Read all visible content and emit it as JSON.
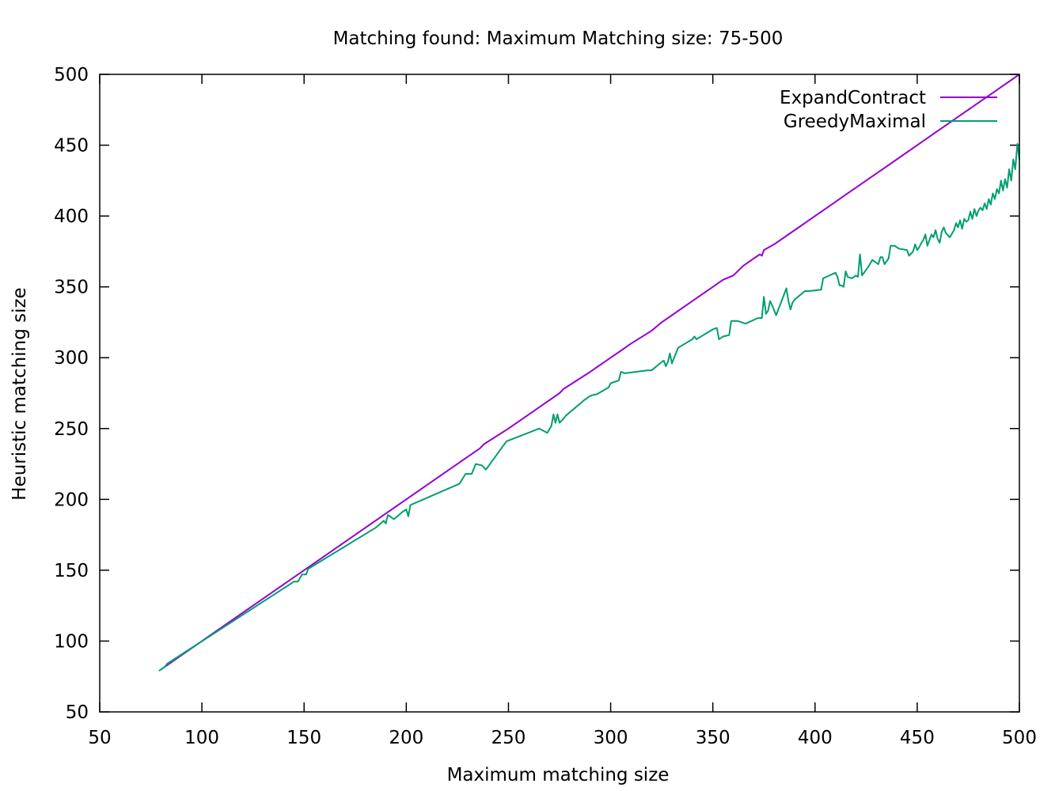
{
  "chart_data": {
    "type": "line",
    "title": "Matching found: Maximum Matching size: 75-500",
    "xlabel": "Maximum matching size",
    "ylabel": "Heuristic matching size",
    "xlim": [
      50,
      500
    ],
    "ylim": [
      50,
      500
    ],
    "xticks": [
      50,
      100,
      150,
      200,
      250,
      300,
      350,
      400,
      450,
      500
    ],
    "yticks": [
      50,
      100,
      150,
      200,
      250,
      300,
      350,
      400,
      450,
      500
    ],
    "grid": false,
    "legend_position": "top-right",
    "series": [
      {
        "name": "ExpandContract",
        "color": "#9400d3",
        "points": [
          [
            80,
            80
          ],
          [
            120,
            120
          ],
          [
            150,
            150
          ],
          [
            200,
            200
          ],
          [
            230,
            230
          ],
          [
            236,
            236
          ],
          [
            238,
            239
          ],
          [
            250,
            250
          ],
          [
            270,
            270
          ],
          [
            275,
            275
          ],
          [
            277,
            278
          ],
          [
            290,
            290
          ],
          [
            300,
            300
          ],
          [
            305,
            305
          ],
          [
            310,
            310
          ],
          [
            320,
            319
          ],
          [
            325,
            325
          ],
          [
            330,
            330
          ],
          [
            340,
            340
          ],
          [
            345,
            345
          ],
          [
            350,
            350
          ],
          [
            355,
            355
          ],
          [
            360,
            358
          ],
          [
            365,
            365
          ],
          [
            370,
            370
          ],
          [
            373,
            373
          ],
          [
            374,
            372
          ],
          [
            375,
            376
          ],
          [
            380,
            380
          ],
          [
            385,
            385
          ],
          [
            390,
            390
          ],
          [
            395,
            395
          ],
          [
            400,
            400
          ],
          [
            405,
            405
          ],
          [
            410,
            410
          ],
          [
            415,
            415
          ],
          [
            420,
            420
          ],
          [
            425,
            425
          ],
          [
            430,
            430
          ],
          [
            435,
            435
          ],
          [
            440,
            440
          ],
          [
            445,
            445
          ],
          [
            450,
            450
          ],
          [
            455,
            455
          ],
          [
            460,
            460
          ],
          [
            465,
            465
          ],
          [
            470,
            470
          ],
          [
            475,
            475
          ],
          [
            480,
            480
          ],
          [
            485,
            485
          ],
          [
            490,
            490
          ],
          [
            495,
            495
          ],
          [
            500,
            500
          ]
        ]
      },
      {
        "name": "GreedyMaximal",
        "color": "#009e73",
        "points": [
          [
            79,
            79
          ],
          [
            80,
            80
          ],
          [
            81,
            81
          ],
          [
            82,
            82
          ],
          [
            83,
            84
          ],
          [
            143,
            140
          ],
          [
            145,
            142
          ],
          [
            147,
            142
          ],
          [
            149,
            147
          ],
          [
            150,
            147
          ],
          [
            151,
            147
          ],
          [
            152,
            151
          ],
          [
            185,
            180
          ],
          [
            189,
            185
          ],
          [
            190,
            183
          ],
          [
            191,
            189
          ],
          [
            194,
            186
          ],
          [
            198,
            191
          ],
          [
            200,
            193
          ],
          [
            201,
            188
          ],
          [
            202,
            196
          ],
          [
            226,
            211
          ],
          [
            229,
            218
          ],
          [
            232,
            218
          ],
          [
            234,
            225
          ],
          [
            237,
            224
          ],
          [
            239,
            221
          ],
          [
            249,
            241
          ],
          [
            265,
            250
          ],
          [
            269,
            247
          ],
          [
            271,
            252
          ],
          [
            272,
            260
          ],
          [
            273,
            254
          ],
          [
            274,
            260
          ],
          [
            275,
            254
          ],
          [
            277,
            257
          ],
          [
            278,
            259
          ],
          [
            287,
            270
          ],
          [
            290,
            273
          ],
          [
            292,
            274
          ],
          [
            293,
            274
          ],
          [
            299,
            279
          ],
          [
            300,
            282
          ],
          [
            304,
            284
          ],
          [
            305,
            290
          ],
          [
            307,
            289
          ],
          [
            318,
            291
          ],
          [
            320,
            291
          ],
          [
            325,
            297
          ],
          [
            326,
            298
          ],
          [
            327,
            294
          ],
          [
            328,
            297
          ],
          [
            329,
            303
          ],
          [
            330,
            296
          ],
          [
            333,
            307
          ],
          [
            340,
            313
          ],
          [
            341,
            315
          ],
          [
            342,
            313
          ],
          [
            350,
            320
          ],
          [
            352,
            321
          ],
          [
            353,
            313
          ],
          [
            355,
            315
          ],
          [
            358,
            316
          ],
          [
            359,
            326
          ],
          [
            362,
            326
          ],
          [
            366,
            324
          ],
          [
            372,
            328
          ],
          [
            373,
            328
          ],
          [
            374,
            328
          ],
          [
            375,
            343
          ],
          [
            376,
            331
          ],
          [
            377,
            333
          ],
          [
            378,
            340
          ],
          [
            379,
            337
          ],
          [
            381,
            330
          ],
          [
            386,
            349
          ],
          [
            387,
            340
          ],
          [
            388,
            334
          ],
          [
            389,
            339
          ],
          [
            390,
            341
          ],
          [
            395,
            347
          ],
          [
            397,
            347
          ],
          [
            403,
            348
          ],
          [
            404,
            356
          ],
          [
            410,
            360
          ],
          [
            411,
            357
          ],
          [
            412,
            351
          ],
          [
            413,
            351
          ],
          [
            414,
            350
          ],
          [
            415,
            361
          ],
          [
            416,
            357
          ],
          [
            418,
            356
          ],
          [
            420,
            358
          ],
          [
            421,
            357
          ],
          [
            422,
            373
          ],
          [
            423,
            358
          ],
          [
            426,
            364
          ],
          [
            428,
            369
          ],
          [
            430,
            367
          ],
          [
            431,
            366
          ],
          [
            432,
            371
          ],
          [
            433,
            371
          ],
          [
            434,
            366
          ],
          [
            436,
            370
          ],
          [
            437,
            379
          ],
          [
            439,
            379
          ],
          [
            441,
            377
          ],
          [
            445,
            376
          ],
          [
            446,
            372
          ],
          [
            448,
            375
          ],
          [
            449,
            380
          ],
          [
            450,
            376
          ],
          [
            451,
            378
          ],
          [
            452,
            381
          ],
          [
            453,
            383
          ],
          [
            454,
            387
          ],
          [
            455,
            379
          ],
          [
            457,
            387
          ],
          [
            458,
            385
          ],
          [
            459,
            390
          ],
          [
            460,
            384
          ],
          [
            461,
            381
          ],
          [
            462,
            389
          ],
          [
            463,
            392
          ],
          [
            464,
            388
          ],
          [
            466,
            385
          ],
          [
            468,
            390
          ],
          [
            469,
            395
          ],
          [
            470,
            392
          ],
          [
            471,
            397
          ],
          [
            472,
            391
          ],
          [
            473,
            398
          ],
          [
            474,
            396
          ],
          [
            475,
            397
          ],
          [
            476,
            403
          ],
          [
            477,
            398
          ],
          [
            478,
            405
          ],
          [
            479,
            400
          ],
          [
            480,
            404
          ],
          [
            481,
            406
          ],
          [
            482,
            404
          ],
          [
            483,
            409
          ],
          [
            484,
            405
          ],
          [
            485,
            412
          ],
          [
            486,
            408
          ],
          [
            487,
            416
          ],
          [
            488,
            412
          ],
          [
            489,
            419
          ],
          [
            490,
            416
          ],
          [
            491,
            425
          ],
          [
            492,
            418
          ],
          [
            493,
            426
          ],
          [
            494,
            420
          ],
          [
            495,
            433
          ],
          [
            496,
            425
          ],
          [
            497,
            440
          ],
          [
            498,
            433
          ],
          [
            499,
            451
          ],
          [
            500,
            440
          ]
        ]
      }
    ]
  }
}
